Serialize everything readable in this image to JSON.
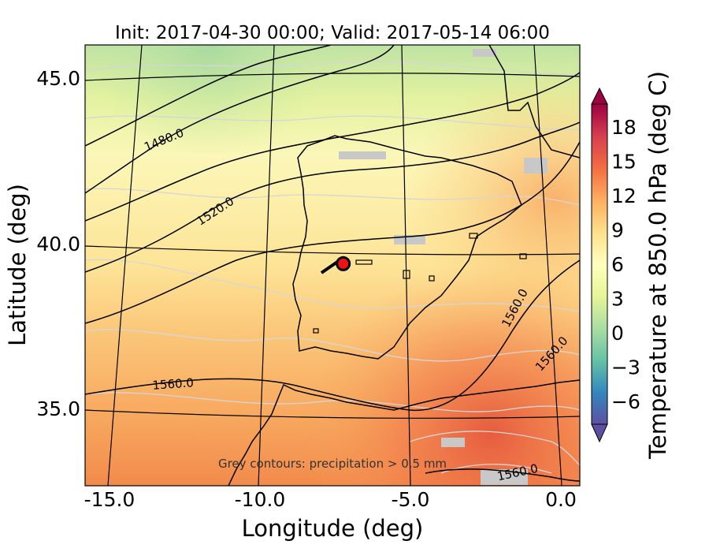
{
  "chart_data": {
    "type": "heatmap",
    "title": "Init: 2017-04-30 00:00; Valid: 2017-05-14 06:00",
    "xlabel": "Longitude (deg)",
    "ylabel": "Latitude (deg)",
    "xlim": [
      -16,
      0
    ],
    "ylim": [
      32.7,
      46
    ],
    "x_ticks": [
      "-15.0",
      "-10.0",
      "-5.0",
      "0.0"
    ],
    "x_tick_values": [
      -15,
      -10,
      -5,
      0
    ],
    "y_ticks": [
      "35.0",
      "40.0",
      "45.0"
    ],
    "y_tick_values": [
      35,
      40,
      45
    ],
    "colorbar": {
      "label": "Temperature at 850.0 hPa (deg C)",
      "ticks": [
        "−6",
        "−3",
        "0",
        "3",
        "6",
        "9",
        "12",
        "15",
        "18"
      ],
      "tick_values": [
        -6,
        -3,
        0,
        3,
        6,
        9,
        12,
        15,
        18
      ],
      "range": [
        -8,
        20
      ],
      "colormap": [
        "#5e4fa2",
        "#3288bd",
        "#66c2a5",
        "#abdda4",
        "#e6f598",
        "#ffffbf",
        "#fee08b",
        "#fdae61",
        "#f46d43",
        "#d53e4f",
        "#9e0142"
      ],
      "extend": "both"
    },
    "geopotential_contour_labels": [
      {
        "text": "1480.0",
        "lon": -13.7,
        "lat": 43.0
      },
      {
        "text": "1520.0",
        "lon": -11.8,
        "lat": 40.7
      },
      {
        "text": "1560.0",
        "lon": -13.0,
        "lat": 35.8
      },
      {
        "text": "1560.0",
        "lon": -2.3,
        "lat": 38.4
      },
      {
        "text": "1560.0",
        "lon": -0.4,
        "lat": 36.9
      },
      {
        "text": "1560.0",
        "lon": -2.0,
        "lat": 32.9
      }
    ],
    "marker": {
      "lon": -7.65,
      "lat": 39.4,
      "color": "#ee1111"
    },
    "annotation": "Grey contours: precipitation > 0.5 mm",
    "grid": true
  }
}
